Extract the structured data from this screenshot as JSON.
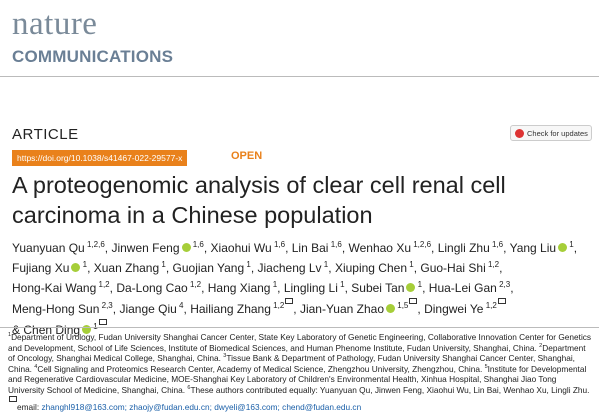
{
  "header": {
    "journal_line1": "nature",
    "journal_line2": "COMMUNICATIONS"
  },
  "article_type": "ARTICLE",
  "check_updates": "Check for updates",
  "doi": "https://doi.org/10.1038/s41467-022-29577-x",
  "access": "OPEN",
  "title": "A proteogenomic analysis of clear cell renal cell carcinoma in a Chinese population",
  "author_separator": ",",
  "author_conjunction": "&",
  "authors": [
    {
      "name": "Yuanyuan Qu",
      "sup": "1,2,6"
    },
    {
      "name": "Jinwen Feng",
      "sup": "1,6",
      "orcid": true
    },
    {
      "name": "Xiaohui Wu",
      "sup": "1,6"
    },
    {
      "name": "Lin Bai",
      "sup": "1,6"
    },
    {
      "name": "Wenhao Xu",
      "sup": "1,2,6"
    },
    {
      "name": "Lingli Zhu",
      "sup": "1,6"
    },
    {
      "name": "Yang Liu",
      "sup": "1",
      "orcid": true
    },
    {
      "name": "Fujiang Xu",
      "sup": "1",
      "orcid": true
    },
    {
      "name": "Xuan Zhang",
      "sup": "1"
    },
    {
      "name": "Guojian Yang",
      "sup": "1"
    },
    {
      "name": "Jiacheng Lv",
      "sup": "1"
    },
    {
      "name": "Xiuping Chen",
      "sup": "1"
    },
    {
      "name": "Guo-Hai Shi",
      "sup": "1,2"
    },
    {
      "name": "Hong-Kai Wang",
      "sup": "1,2"
    },
    {
      "name": "Da-Long Cao",
      "sup": "1,2"
    },
    {
      "name": "Hang Xiang",
      "sup": "1"
    },
    {
      "name": "Lingling Li",
      "sup": "1"
    },
    {
      "name": "Subei Tan",
      "sup": "1",
      "orcid": true
    },
    {
      "name": "Hua-Lei Gan",
      "sup": "2,3"
    },
    {
      "name": "Meng-Hong Sun",
      "sup": "2,3"
    },
    {
      "name": "Jiange Qiu",
      "sup": "4"
    },
    {
      "name": "Hailiang Zhang",
      "sup": "1,2",
      "email": true
    },
    {
      "name": "Jian-Yuan Zhao",
      "sup": "1,5",
      "orcid": true,
      "email": true
    },
    {
      "name": "Dingwei Ye",
      "sup": "1,2",
      "email": true
    },
    {
      "name": "Chen Ding",
      "sup": "1",
      "orcid": true,
      "email": true
    }
  ],
  "affiliations": [
    {
      "number": "1",
      "text": "Department of Urology, Fudan University Shanghai Cancer Center, State Key Laboratory of Genetic Engineering, Collaborative Innovation Center for Genetics and Development, School of Life Sciences, Institute of Biomedical Sciences, and Human Phenome Institute, Fudan University, Shanghai, China."
    },
    {
      "number": "2",
      "text": "Department of Oncology, Shanghai Medical College, Shanghai, China."
    },
    {
      "number": "3",
      "text": "Tissue Bank & Department of Pathology, Fudan University Shanghai Cancer Center, Shanghai, China."
    },
    {
      "number": "4",
      "text": "Cell Signaling and Proteomics Research Center, Academy of Medical Science, Zhengzhou University, Zhengzhou, China."
    },
    {
      "number": "5",
      "text": "Institute for Developmental and Regenerative Cardiovascular Medicine, MOE-Shanghai Key Laboratory of Children's Environmental Health, Xinhua Hospital, Shanghai Jiao Tong University School of Medicine, Shanghai, China."
    },
    {
      "number": "6",
      "text": "These authors contributed equally: Yuanyuan Qu, Jinwen Feng, Xiaohui Wu, Lin Bai, Wenhao Xu, Lingli Zhu."
    }
  ],
  "email_label": "email:",
  "emails": [
    "zhanghl918@163.com;",
    "zhaojy@fudan.edu.cn;",
    "dwyeli@163.com;",
    "chend@fudan.edu.cn"
  ]
}
